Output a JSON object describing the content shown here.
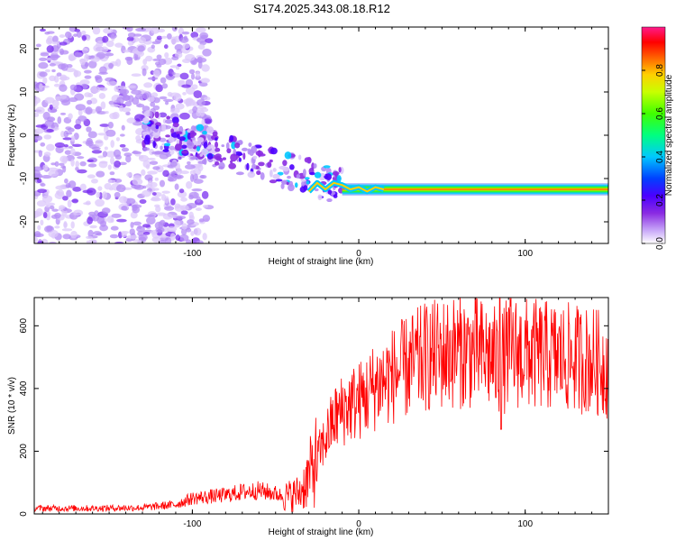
{
  "title": "S174.2025.343.08.18.R12",
  "chart_data": [
    {
      "type": "heatmap",
      "name": "spectrogram",
      "xlabel": "Height of straight line (km)",
      "ylabel": "Frequency (Hz)",
      "xlim": [
        -195,
        150
      ],
      "ylim": [
        -25,
        25
      ],
      "xticks": [
        -100,
        0,
        100
      ],
      "yticks": [
        -20,
        -10,
        0,
        10,
        20
      ],
      "colorbar": {
        "label": "Normalized spectral amplitude",
        "range": [
          0,
          1
        ],
        "ticks": [
          0.0,
          0.2,
          0.4,
          0.6,
          0.8
        ],
        "colormap": [
          "#ffffff",
          "#c8a8f8",
          "#8a2be2",
          "#4b00ff",
          "#0040ff",
          "#00c8ff",
          "#00ff80",
          "#40ff00",
          "#c8ff00",
          "#ffd000",
          "#ff6000",
          "#ff0000",
          "#ff1a8c"
        ]
      },
      "traces": [
        {
          "name": "carrier-line",
          "x_start": -10,
          "x_end": 150,
          "freq": -12.5,
          "amplitude_core": 0.95,
          "amplitude_edge": 0.3
        },
        {
          "name": "drifting-tone",
          "x_start": -130,
          "x_end": -10,
          "freq_start": 2,
          "freq_end": -12,
          "amplitude": 0.35
        }
      ],
      "noise_region": {
        "x_start": -195,
        "x_end": -100,
        "freq_range": [
          -25,
          25
        ],
        "amplitude": 0.15
      }
    },
    {
      "type": "line",
      "name": "snr",
      "xlabel": "Height of straight line (km)",
      "ylabel": "SNR (10 * v/v)",
      "xlim": [
        -195,
        150
      ],
      "ylim": [
        0,
        690
      ],
      "xticks": [
        -100,
        0,
        100
      ],
      "yticks": [
        0,
        200,
        400,
        600
      ],
      "color": "#ff0000",
      "series": [
        {
          "name": "SNR envelope",
          "x": [
            -195,
            -160,
            -130,
            -110,
            -100,
            -90,
            -80,
            -70,
            -60,
            -50,
            -45,
            -40,
            -35,
            -30,
            -25,
            -20,
            -15,
            -10,
            -5,
            0,
            5,
            10,
            20,
            30,
            40,
            50,
            60,
            70,
            80,
            85,
            90,
            100,
            110,
            120,
            130,
            140,
            150
          ],
          "y": [
            18,
            18,
            20,
            30,
            50,
            55,
            60,
            70,
            75,
            65,
            55,
            60,
            70,
            120,
            180,
            240,
            300,
            330,
            350,
            360,
            380,
            410,
            440,
            470,
            500,
            510,
            520,
            515,
            500,
            470,
            520,
            510,
            505,
            500,
            495,
            490,
            470
          ]
        }
      ],
      "annotations": [
        {
          "x": 85,
          "y": 690,
          "text": ""
        }
      ]
    }
  ]
}
